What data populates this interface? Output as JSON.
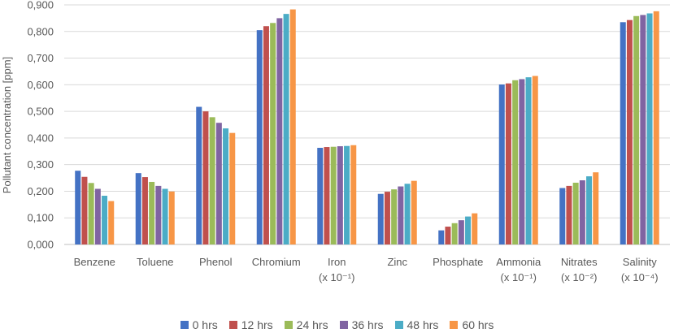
{
  "chart_data": {
    "type": "bar",
    "title": "",
    "xlabel": "",
    "ylabel": "Pollutant concentration [ppm]",
    "ylim": [
      0,
      0.9
    ],
    "y_ticks": [
      "0,000",
      "0,100",
      "0,200",
      "0,300",
      "0,400",
      "0,500",
      "0,600",
      "0,700",
      "0,800",
      "0,900"
    ],
    "grid": true,
    "legend_position": "bottom",
    "categories": [
      {
        "line1": "Benzene",
        "line2": ""
      },
      {
        "line1": "Toluene",
        "line2": ""
      },
      {
        "line1": "Phenol",
        "line2": ""
      },
      {
        "line1": "Chromium",
        "line2": ""
      },
      {
        "line1": "Iron",
        "line2": "(x 10⁻¹)"
      },
      {
        "line1": "Zinc",
        "line2": ""
      },
      {
        "line1": "Phosphate",
        "line2": ""
      },
      {
        "line1": "Ammonia",
        "line2": "(x 10⁻¹)"
      },
      {
        "line1": "Nitrates",
        "line2": "(x 10⁻²)"
      },
      {
        "line1": "Salinity",
        "line2": "(x 10⁻⁴)"
      }
    ],
    "series": [
      {
        "name": "0 hrs",
        "color": "#4472C4",
        "values": [
          0.277,
          0.268,
          0.517,
          0.805,
          0.363,
          0.19,
          0.053,
          0.601,
          0.212,
          0.835
        ]
      },
      {
        "name": "12 hrs",
        "color": "#C0504D",
        "values": [
          0.254,
          0.253,
          0.5,
          0.82,
          0.366,
          0.198,
          0.067,
          0.605,
          0.22,
          0.843
        ]
      },
      {
        "name": "24 hrs",
        "color": "#9BBB59",
        "values": [
          0.231,
          0.235,
          0.478,
          0.832,
          0.367,
          0.207,
          0.08,
          0.617,
          0.232,
          0.858
        ]
      },
      {
        "name": "36 hrs",
        "color": "#8064A2",
        "values": [
          0.209,
          0.22,
          0.457,
          0.85,
          0.369,
          0.218,
          0.091,
          0.621,
          0.241,
          0.862
        ]
      },
      {
        "name": "48 hrs",
        "color": "#4BACC6",
        "values": [
          0.183,
          0.209,
          0.436,
          0.866,
          0.37,
          0.228,
          0.105,
          0.628,
          0.256,
          0.868
        ]
      },
      {
        "name": "60 hrs",
        "color": "#F79646",
        "values": [
          0.163,
          0.199,
          0.419,
          0.883,
          0.373,
          0.239,
          0.117,
          0.633,
          0.271,
          0.876
        ]
      }
    ]
  },
  "legend": {
    "items": [
      "0 hrs",
      "12 hrs",
      "24 hrs",
      "36 hrs",
      "48 hrs",
      "60 hrs"
    ]
  }
}
